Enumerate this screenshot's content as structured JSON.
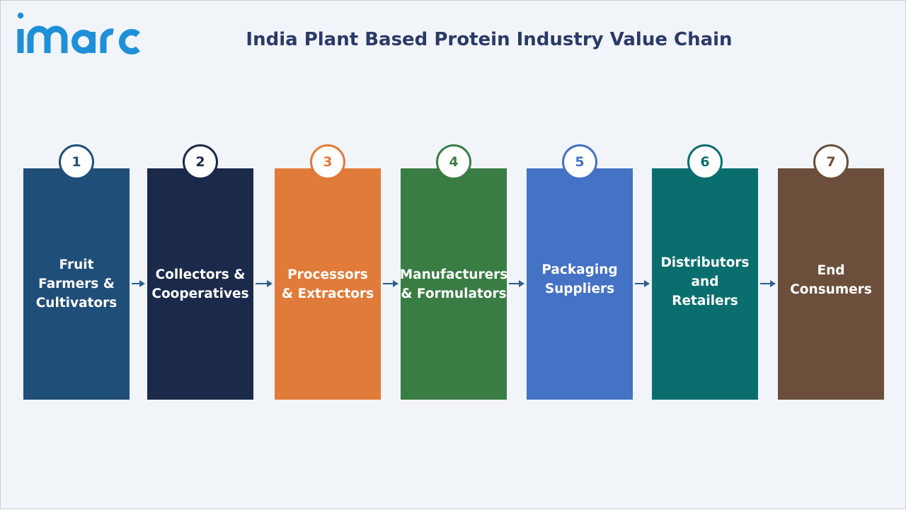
{
  "header": {
    "logo_text": "imarc",
    "title": "India Plant Based Protein Industry Value Chain"
  },
  "colors": {
    "title": "#2b3a67",
    "logo": "#1e90d8",
    "background": "#f1f4f9",
    "arrow": "#2f5f8a"
  },
  "stages": [
    {
      "number": "1",
      "label": "Fruit\nFarmers &\nCultivators",
      "color": "#1f4e79"
    },
    {
      "number": "2",
      "label": "Collectors &\nCooperatives",
      "color": "#1b2a4a"
    },
    {
      "number": "3",
      "label": "Processors\n& Extractors",
      "color": "#e07b39"
    },
    {
      "number": "4",
      "label": "Manufacturers\n& Formulators",
      "color": "#3a7d44"
    },
    {
      "number": "5",
      "label": "Packaging\nSuppliers",
      "color": "#4472c4"
    },
    {
      "number": "6",
      "label": "Distributors\nand\nRetailers",
      "color": "#0b6e6e"
    },
    {
      "number": "7",
      "label": "End\nConsumers",
      "color": "#6b4f3a"
    }
  ]
}
